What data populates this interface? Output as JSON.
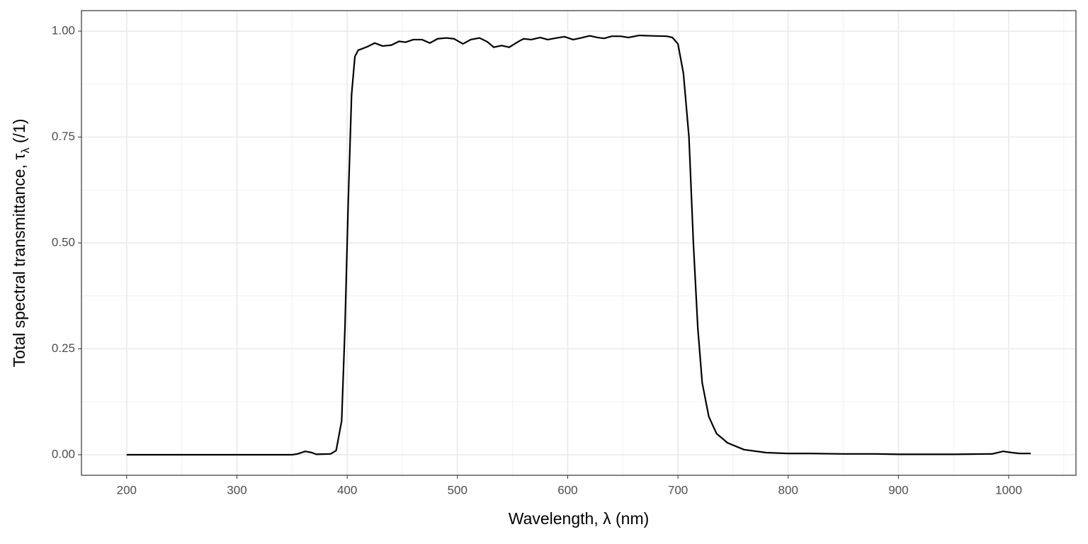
{
  "chart_data": {
    "type": "line",
    "x_label": "Wavelength, λ (nm)",
    "y_label": {
      "text": "Total spectral transmittance, τ",
      "subscript": "λ",
      "suffix": " (/1)"
    },
    "xlim": [
      159,
      1061
    ],
    "ylim": [
      -0.0485,
      1.0485
    ],
    "xticks": [
      200,
      300,
      400,
      500,
      600,
      700,
      800,
      900,
      1000
    ],
    "yticks": [
      {
        "value": 0,
        "label": "0.00"
      },
      {
        "value": 0.25,
        "label": "0.25"
      },
      {
        "value": 0.5,
        "label": "0.50"
      },
      {
        "value": 0.75,
        "label": "0.75"
      },
      {
        "value": 1,
        "label": "1.00"
      }
    ],
    "grid": true,
    "series": [
      {
        "color": "#000000",
        "x": [
          200,
          350,
          355,
          362,
          368,
          372,
          385,
          390,
          395,
          398,
          401,
          404,
          407,
          410,
          418,
          425,
          432,
          440,
          447,
          453,
          460,
          468,
          475,
          482,
          490,
          497,
          505,
          512,
          520,
          527,
          533,
          540,
          547,
          555,
          560,
          567,
          575,
          582,
          590,
          597,
          605,
          612,
          620,
          627,
          633,
          640,
          648,
          655,
          665,
          675,
          690,
          695,
          700,
          705,
          710,
          714,
          718,
          722,
          728,
          735,
          745,
          760,
          780,
          800,
          820,
          850,
          880,
          900,
          950,
          985,
          995,
          1003,
          1010,
          1020
        ],
        "values": [
          0,
          0,
          0.002,
          0.008,
          0.005,
          0.001,
          0.002,
          0.01,
          0.08,
          0.3,
          0.6,
          0.85,
          0.94,
          0.955,
          0.963,
          0.972,
          0.965,
          0.967,
          0.976,
          0.974,
          0.98,
          0.98,
          0.972,
          0.982,
          0.984,
          0.982,
          0.97,
          0.98,
          0.984,
          0.975,
          0.962,
          0.966,
          0.962,
          0.975,
          0.982,
          0.98,
          0.985,
          0.98,
          0.984,
          0.987,
          0.98,
          0.984,
          0.989,
          0.985,
          0.983,
          0.988,
          0.988,
          0.985,
          0.99,
          0.989,
          0.988,
          0.985,
          0.97,
          0.9,
          0.75,
          0.5,
          0.3,
          0.17,
          0.09,
          0.05,
          0.028,
          0.012,
          0.005,
          0.003,
          0.003,
          0.002,
          0.002,
          0.001,
          0.001,
          0.002,
          0.008,
          0.005,
          0.003,
          0.003
        ]
      }
    ]
  }
}
